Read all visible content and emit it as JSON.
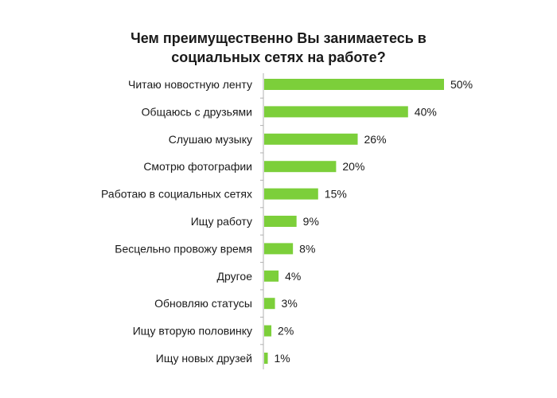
{
  "chart_data": {
    "type": "bar",
    "orientation": "horizontal",
    "title_lines": [
      "Чем преимущественно Вы занимаетесь в",
      "социальных сетях на работе?"
    ],
    "categories": [
      "Читаю новостную ленту",
      "Общаюсь с друзьями",
      "Слушаю музыку",
      "Смотрю фотографии",
      "Работаю в социальных сетях",
      "Ищу работу",
      "Бесцельно провожу время",
      "Другое",
      "Обновляю статусы",
      "Ищу вторую половинку",
      "Ищу новых друзей"
    ],
    "values": [
      50,
      40,
      26,
      20,
      15,
      9,
      8,
      4,
      3,
      2,
      1
    ],
    "value_labels": [
      "50%",
      "40%",
      "26%",
      "20%",
      "15%",
      "9%",
      "8%",
      "4%",
      "3%",
      "2%",
      "1%"
    ],
    "xlim": [
      0,
      50
    ],
    "grid": false,
    "bar_color": "#7ccf3a",
    "axis_color": "#b0b0b0"
  }
}
